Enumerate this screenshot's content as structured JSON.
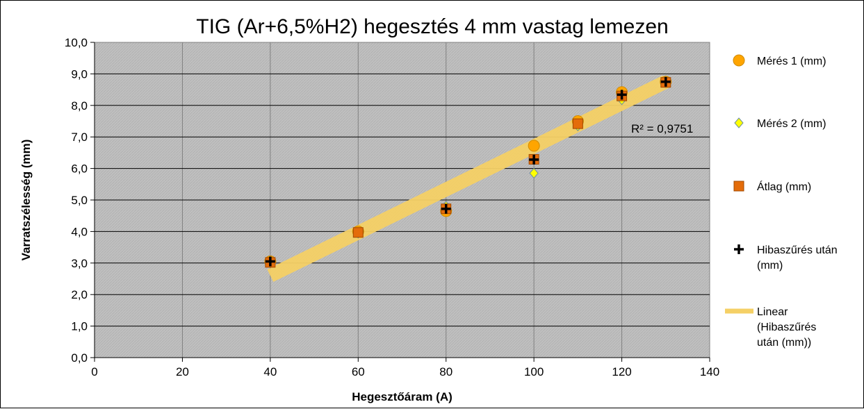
{
  "chart_data": {
    "type": "scatter",
    "title": "TIG (Ar+6,5%H2) hegesztés 4 mm vastag lemezen",
    "xlabel": "Hegesztőáram (A)",
    "ylabel": "Varratszélesség (mm)",
    "xlim": [
      0,
      140
    ],
    "ylim": [
      0,
      10
    ],
    "x_ticks": [
      "0",
      "20",
      "40",
      "60",
      "80",
      "100",
      "120",
      "140"
    ],
    "y_ticks": [
      "0,0",
      "1,0",
      "2,0",
      "3,0",
      "4,0",
      "5,0",
      "6,0",
      "7,0",
      "8,0",
      "9,0",
      "10,0"
    ],
    "grid": true,
    "legend_position": "right",
    "background_color": "#c0c0c0",
    "series": [
      {
        "name": "Mérés 1 (mm)",
        "marker": "circle",
        "color": "#ffa500",
        "points": [
          [
            40,
            3.05
          ],
          [
            60,
            4.0
          ],
          [
            80,
            4.65
          ],
          [
            100,
            6.72
          ],
          [
            110,
            7.5
          ],
          [
            120,
            8.42
          ],
          [
            130,
            8.75
          ]
        ]
      },
      {
        "name": "Mérés 2 (mm)",
        "marker": "diamond",
        "color": "#ffff00",
        "points": [
          [
            40,
            3.0
          ],
          [
            60,
            3.95
          ],
          [
            80,
            4.8
          ],
          [
            100,
            5.85
          ],
          [
            110,
            7.35
          ],
          [
            120,
            8.18
          ],
          [
            130,
            8.72
          ]
        ]
      },
      {
        "name": "Átlag (mm)",
        "marker": "square",
        "color": "#e46c0a",
        "points": [
          [
            40,
            3.02
          ],
          [
            60,
            3.97
          ],
          [
            80,
            4.72
          ],
          [
            100,
            6.29
          ],
          [
            110,
            7.42
          ],
          [
            120,
            8.3
          ],
          [
            130,
            8.73
          ]
        ]
      },
      {
        "name": "Hibaszűrés után (mm)",
        "marker": "plus",
        "color": "#000000",
        "points": [
          [
            40,
            3.05
          ],
          [
            80,
            4.72
          ],
          [
            100,
            6.28
          ],
          [
            120,
            8.34
          ],
          [
            130,
            8.75
          ]
        ]
      }
    ],
    "trendline": {
      "name": "Linear (Hibaszűrés után (mm))",
      "type": "linear",
      "color": "#f5d066",
      "from": [
        40,
        2.6
      ],
      "to": [
        130,
        8.75
      ],
      "r2_label": "R² = 0,9751"
    }
  }
}
